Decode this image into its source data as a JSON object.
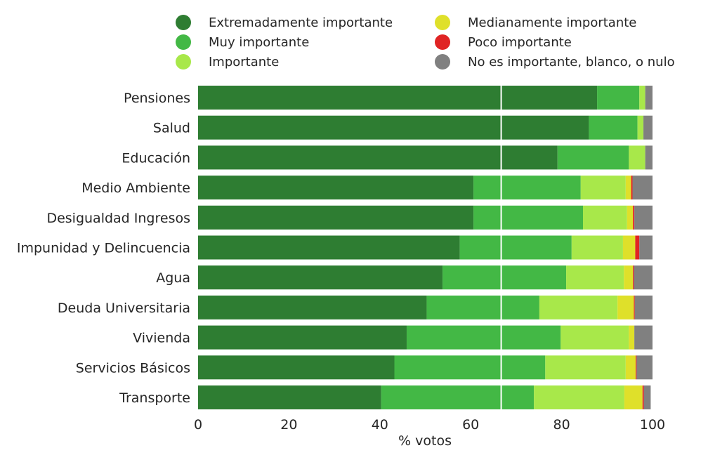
{
  "chart_data": {
    "type": "bar",
    "orientation": "horizontal",
    "stacked": true,
    "xlabel": "% votos",
    "xlim": [
      0,
      100
    ],
    "xticks": [
      "0",
      "20",
      "40",
      "60",
      "80",
      "100"
    ],
    "reference_line_x": 66.7,
    "legend_position": "top",
    "categories": [
      "Pensiones",
      "Salud",
      "Educación",
      "Medio Ambiente",
      "Desigualdad Ingresos",
      "Impunidad y Delincuencia",
      "Agua",
      "Deuda Universitaria",
      "Vivienda",
      "Servicios Básicos",
      "Transporte"
    ],
    "series": [
      {
        "name": "Extremadamente importante",
        "color": "#2e7d32",
        "values": [
          87.8,
          86.0,
          79.1,
          60.6,
          60.6,
          57.6,
          53.8,
          50.3,
          45.9,
          43.2,
          40.3
        ]
      },
      {
        "name": "Muy importante",
        "color": "#43b845",
        "values": [
          9.3,
          10.7,
          15.7,
          23.6,
          24.1,
          24.6,
          27.2,
          24.8,
          33.9,
          33.2,
          33.6
        ]
      },
      {
        "name": "Importante",
        "color": "#a8e84a",
        "values": [
          1.3,
          1.3,
          3.6,
          9.9,
          9.7,
          11.3,
          12.7,
          17.2,
          15.0,
          17.7,
          19.9
        ]
      },
      {
        "name": "Medianamente importante",
        "color": "#dfe02a",
        "values": [
          0.0,
          0.0,
          0.0,
          1.2,
          1.3,
          2.7,
          2.0,
          3.6,
          1.2,
          2.2,
          4.0
        ]
      },
      {
        "name": "Poco importante",
        "color": "#e02424",
        "values": [
          0.0,
          0.0,
          0.0,
          0.3,
          0.3,
          0.9,
          0.2,
          0.2,
          0.0,
          0.2,
          0.3
        ]
      },
      {
        "name": "No es importante, blanco, o nulo",
        "color": "#808080",
        "values": [
          1.6,
          2.0,
          1.6,
          4.4,
          4.0,
          2.9,
          4.1,
          3.9,
          4.0,
          3.5,
          1.5
        ]
      }
    ]
  }
}
